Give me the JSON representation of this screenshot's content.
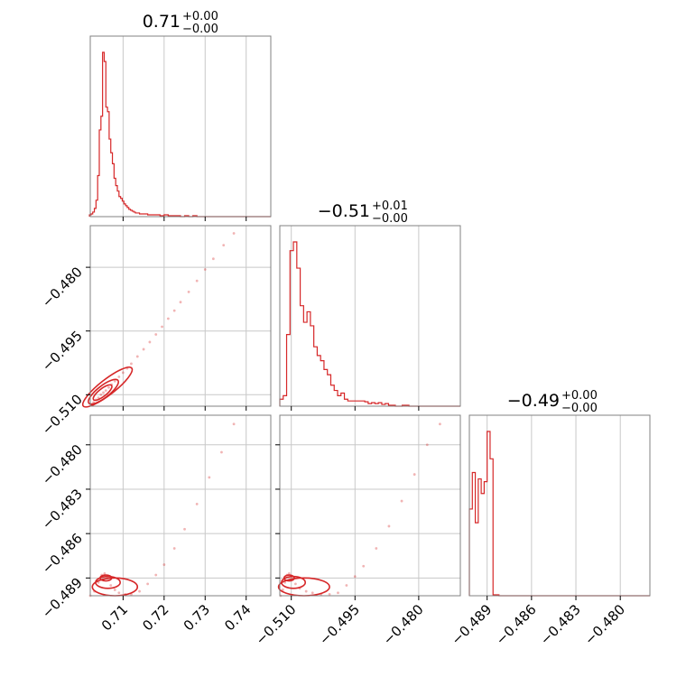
{
  "chart_data": {
    "type": "corner",
    "color": "#d62728",
    "params": [
      {
        "title": {
          "median": "0.71",
          "plus": "+0.00",
          "minus": "−0.00"
        },
        "range": [
          0.702,
          0.746
        ],
        "ticks": [
          0.71,
          0.72,
          0.73,
          0.74
        ],
        "tick_labels": [
          "0.71",
          "0.72",
          "0.73",
          "0.74"
        ],
        "hist": {
          "bins": [
            0.7018,
            0.7022,
            0.7026,
            0.703,
            0.7034,
            0.7038,
            0.7042,
            0.7046,
            0.705,
            0.7054,
            0.7058,
            0.7062,
            0.7066,
            0.707,
            0.7074,
            0.7078,
            0.7082,
            0.7086,
            0.709,
            0.7094,
            0.7098,
            0.7102,
            0.7106,
            0.711,
            0.7114,
            0.7118,
            0.7122,
            0.7126,
            0.713,
            0.714,
            0.715,
            0.716,
            0.717,
            0.718,
            0.719,
            0.72,
            0.721,
            0.722,
            0.723,
            0.724,
            0.725,
            0.726,
            0.727,
            0.728,
            0.729,
            0.73,
            0.731,
            0.732,
            0.733,
            0.734,
            0.746
          ],
          "counts": [
            2,
            3,
            5,
            9,
            18,
            45,
            95,
            110,
            180,
            170,
            120,
            115,
            85,
            70,
            58,
            42,
            34,
            28,
            22,
            20,
            17,
            14,
            12,
            10,
            8,
            7,
            6,
            5,
            4,
            3,
            3,
            2,
            2,
            2,
            1,
            2,
            1,
            1,
            1,
            0,
            1,
            0,
            1,
            0,
            0,
            0,
            0,
            0,
            0,
            0
          ]
        }
      },
      {
        "title": {
          "median": "−0.51",
          "plus": "+0.01",
          "minus": "−0.00"
        },
        "range": [
          -0.5127,
          -0.4702
        ],
        "ticks": [
          -0.51,
          -0.495,
          -0.48
        ],
        "tick_labels": [
          "−0.510",
          "−0.495",
          "−0.480"
        ],
        "hist": {
          "bins": [
            -0.5127,
            -0.5119,
            -0.5111,
            -0.5103,
            -0.5095,
            -0.5087,
            -0.5079,
            -0.5071,
            -0.5063,
            -0.5055,
            -0.5047,
            -0.5039,
            -0.5031,
            -0.5023,
            -0.5015,
            -0.5007,
            -0.4999,
            -0.4991,
            -0.4983,
            -0.4975,
            -0.4967,
            -0.4959,
            -0.4951,
            -0.4943,
            -0.4935,
            -0.4927,
            -0.4919,
            -0.4911,
            -0.4903,
            -0.4895,
            -0.4887,
            -0.4879,
            -0.4871,
            -0.4863,
            -0.4855,
            -0.4847,
            -0.4839,
            -0.4831,
            -0.4823,
            -0.4815,
            -0.4807,
            -0.4799,
            -0.4702
          ],
          "counts": [
            8,
            12,
            82,
            178,
            188,
            158,
            115,
            96,
            108,
            92,
            68,
            58,
            52,
            42,
            36,
            24,
            18,
            12,
            15,
            8,
            6,
            6,
            6,
            6,
            6,
            5,
            3,
            4,
            3,
            4,
            2,
            3,
            1,
            1,
            0,
            0,
            1,
            1,
            0,
            0,
            0,
            0
          ]
        }
      },
      {
        "title": {
          "median": "−0.49",
          "plus": "+0.00",
          "minus": "−0.00"
        },
        "range": [
          -0.4902,
          -0.478
        ],
        "ticks": [
          -0.489,
          -0.486,
          -0.483,
          -0.48
        ],
        "tick_labels": [
          "−0.489",
          "−0.486",
          "−0.483",
          "−0.480"
        ],
        "hist": {
          "bins": [
            -0.4902,
            -0.49,
            -0.4898,
            -0.4896,
            -0.4894,
            -0.4892,
            -0.489,
            -0.4888,
            -0.4886,
            -0.4884,
            -0.4882,
            -0.488,
            -0.4878,
            -0.4876,
            -0.4874,
            -0.478
          ],
          "counts": [
            95,
            135,
            80,
            128,
            112,
            125,
            180,
            150,
            1,
            1,
            0,
            0,
            0,
            0,
            0
          ]
        }
      }
    ],
    "scatter": {
      "1_0": [
        [
          0.7022,
          -0.5123
        ],
        [
          0.7028,
          -0.5118
        ],
        [
          0.7034,
          -0.5112
        ],
        [
          0.704,
          -0.5107
        ],
        [
          0.7046,
          -0.51
        ],
        [
          0.7052,
          -0.5095
        ],
        [
          0.7058,
          -0.509
        ],
        [
          0.7065,
          -0.5083
        ],
        [
          0.7072,
          -0.5076
        ],
        [
          0.708,
          -0.5068
        ],
        [
          0.709,
          -0.5058
        ],
        [
          0.71,
          -0.5048
        ],
        [
          0.711,
          -0.5038
        ],
        [
          0.712,
          -0.5027
        ],
        [
          0.7135,
          -0.501
        ],
        [
          0.715,
          -0.4993
        ],
        [
          0.7165,
          -0.4976
        ],
        [
          0.718,
          -0.4958
        ],
        [
          0.7195,
          -0.494
        ],
        [
          0.721,
          -0.4921
        ],
        [
          0.7225,
          -0.4902
        ],
        [
          0.724,
          -0.4882
        ],
        [
          0.726,
          -0.4858
        ],
        [
          0.728,
          -0.4832
        ],
        [
          0.73,
          -0.4805
        ],
        [
          0.732,
          -0.478
        ],
        [
          0.7345,
          -0.4748
        ],
        [
          0.737,
          -0.472
        ]
      ],
      "2_0": [
        [
          0.702,
          -0.4902
        ],
        [
          0.703,
          -0.4899
        ],
        [
          0.704,
          -0.4893
        ],
        [
          0.7048,
          -0.4888
        ],
        [
          0.7055,
          -0.4887
        ],
        [
          0.7062,
          -0.489
        ],
        [
          0.707,
          -0.4895
        ],
        [
          0.708,
          -0.4898
        ],
        [
          0.709,
          -0.49
        ],
        [
          0.7105,
          -0.4901
        ],
        [
          0.712,
          -0.4901
        ],
        [
          0.714,
          -0.4899
        ],
        [
          0.716,
          -0.4894
        ],
        [
          0.718,
          -0.4888
        ],
        [
          0.72,
          -0.4881
        ],
        [
          0.7225,
          -0.487
        ],
        [
          0.725,
          -0.4857
        ],
        [
          0.728,
          -0.484
        ],
        [
          0.731,
          -0.4822
        ],
        [
          0.734,
          -0.4805
        ],
        [
          0.737,
          -0.4786
        ]
      ],
      "2_1": [
        [
          -0.5125,
          -0.4902
        ],
        [
          -0.512,
          -0.4898
        ],
        [
          -0.5115,
          -0.4893
        ],
        [
          -0.511,
          -0.4888
        ],
        [
          -0.5105,
          -0.4887
        ],
        [
          -0.51,
          -0.4889
        ],
        [
          -0.509,
          -0.4894
        ],
        [
          -0.508,
          -0.4897
        ],
        [
          -0.5065,
          -0.4899
        ],
        [
          -0.505,
          -0.49
        ],
        [
          -0.503,
          -0.4901
        ],
        [
          -0.501,
          -0.4901
        ],
        [
          -0.499,
          -0.49
        ],
        [
          -0.497,
          -0.4895
        ],
        [
          -0.495,
          -0.4889
        ],
        [
          -0.493,
          -0.4882
        ],
        [
          -0.49,
          -0.487
        ],
        [
          -0.487,
          -0.4855
        ],
        [
          -0.484,
          -0.4838
        ],
        [
          -0.481,
          -0.482
        ],
        [
          -0.478,
          -0.48
        ],
        [
          -0.475,
          -0.4786
        ]
      ]
    },
    "contours": {
      "1_0": [
        {
          "cx": 0.705,
          "cy": -0.5095,
          "rx": 0.0028,
          "ry": 0.0009
        },
        {
          "cx": 0.7052,
          "cy": -0.5093,
          "rx": 0.0045,
          "ry": 0.0014
        },
        {
          "cx": 0.7062,
          "cy": -0.5082,
          "rx": 0.0075,
          "ry": 0.0018
        }
      ],
      "2_0": [
        {
          "cx": 0.7058,
          "cy": -0.489,
          "rx": 0.0014,
          "ry": 0.0002
        },
        {
          "cx": 0.7063,
          "cy": -0.4893,
          "rx": 0.003,
          "ry": 0.0004
        },
        {
          "cx": 0.708,
          "cy": -0.4896,
          "rx": 0.0055,
          "ry": 0.0006
        }
      ],
      "2_1": [
        {
          "cx": -0.5105,
          "cy": -0.489,
          "rx": 0.0012,
          "ry": 0.0002
        },
        {
          "cx": -0.5095,
          "cy": -0.4893,
          "rx": 0.0028,
          "ry": 0.0004
        },
        {
          "cx": -0.507,
          "cy": -0.4896,
          "rx": 0.006,
          "ry": 0.0006
        }
      ]
    },
    "grid": true
  }
}
